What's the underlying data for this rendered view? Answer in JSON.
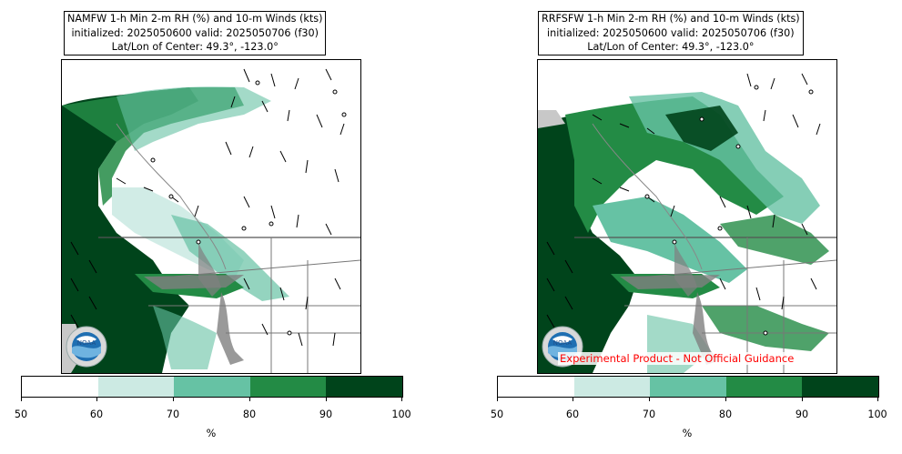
{
  "panels": [
    {
      "title_lines": [
        "NAMFW 1-h Min 2-m RH (%) and 10-m Winds (kts)",
        "initialized: 2025050600 valid: 2025050706 (f30)",
        "Lat/Lon of Center: 49.3°, -123.0°"
      ],
      "colorbar_unit": "%",
      "banner": ""
    },
    {
      "title_lines": [
        "RRFSFW 1-h Min 2-m RH (%) and 10-m Winds (kts)",
        "initialized: 2025050600 valid: 2025050706 (f30)",
        "Lat/Lon of Center: 49.3°, -123.0°"
      ],
      "colorbar_unit": "%",
      "banner": "Experimental Product - Not Official Guidance"
    }
  ],
  "colorbar": {
    "ticks": [
      "50",
      "60",
      "70",
      "80",
      "90",
      "100"
    ],
    "colors": [
      "#ffffff",
      "#cceae3",
      "#66c2a4",
      "#238b45",
      "#00441b"
    ]
  },
  "logo": {
    "icon": "noaa-logo",
    "text": "NOAA"
  },
  "colors": {
    "land_dry": "#ffffff",
    "rh_60_70": "#cceae3",
    "rh_70_80": "#66c2a4",
    "rh_80_90": "#238b45",
    "rh_90_100": "#00441b",
    "water_gray": "#808080",
    "banner": "#ff0000"
  }
}
